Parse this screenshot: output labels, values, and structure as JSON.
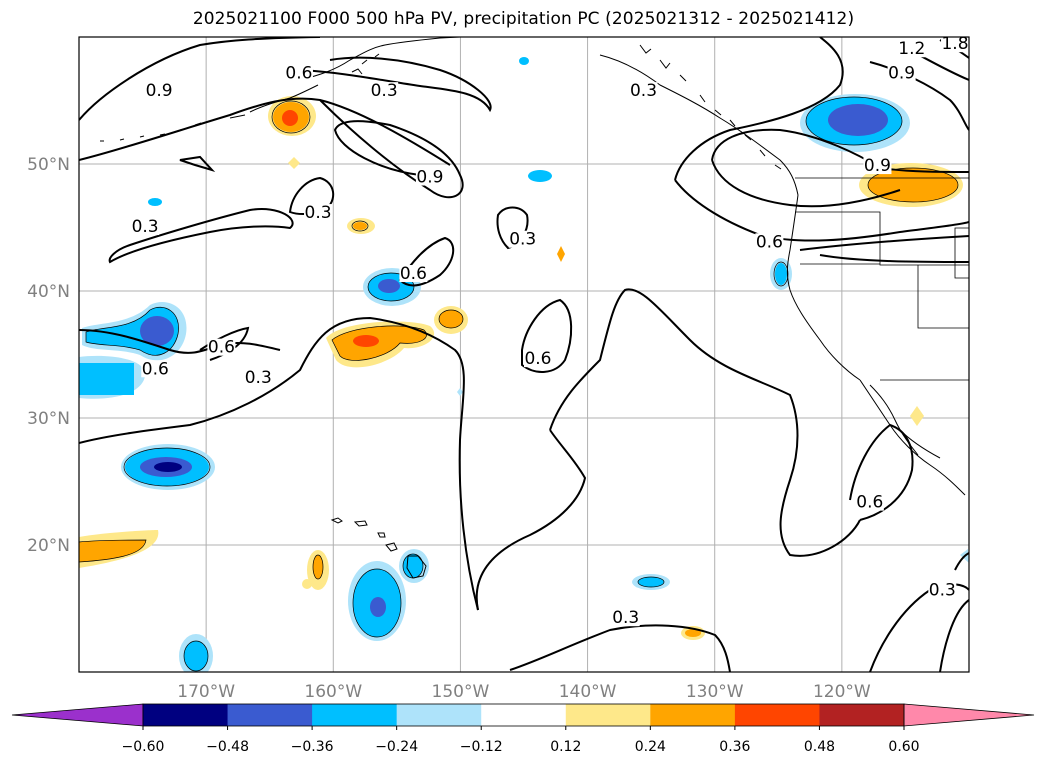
{
  "title": "2025021100 F000 500 hPa PV, precipitation PC (2025021312 - 2025021412)",
  "map": {
    "lon_range": [
      -180,
      -110
    ],
    "lat_range": [
      10,
      60
    ],
    "lon_ticks": [
      {
        "lon": -170,
        "label": "170°W"
      },
      {
        "lon": -160,
        "label": "160°W"
      },
      {
        "lon": -150,
        "label": "150°W"
      },
      {
        "lon": -140,
        "label": "140°W"
      },
      {
        "lon": -130,
        "label": "130°W"
      },
      {
        "lon": -120,
        "label": "120°W"
      }
    ],
    "lat_ticks": [
      {
        "lat": 20,
        "label": "20°N"
      },
      {
        "lat": 30,
        "label": "30°N"
      },
      {
        "lat": 40,
        "label": "40°N"
      },
      {
        "lat": 50,
        "label": "50°N"
      }
    ],
    "gridlines": true,
    "contour_labels": [
      {
        "text": "0.6",
        "lon": -162.7,
        "lat": 56.9
      },
      {
        "text": "0.3",
        "lon": -156.0,
        "lat": 55.5
      },
      {
        "text": "0.9",
        "lon": -173.7,
        "lat": 55.5
      },
      {
        "text": "0.3",
        "lon": -135.6,
        "lat": 55.5
      },
      {
        "text": "1.2",
        "lon": -114.5,
        "lat": 58.8
      },
      {
        "text": "0.9",
        "lon": -115.3,
        "lat": 56.9
      },
      {
        "text": "1.8",
        "lon": -111.1,
        "lat": 59.2
      },
      {
        "text": "0.9",
        "lon": -152.4,
        "lat": 48.7
      },
      {
        "text": "0.3",
        "lon": -161.2,
        "lat": 45.9
      },
      {
        "text": "0.3",
        "lon": -174.8,
        "lat": 44.8
      },
      {
        "text": "0.9",
        "lon": -117.2,
        "lat": 49.6
      },
      {
        "text": "0.3",
        "lon": -145.1,
        "lat": 43.8
      },
      {
        "text": "0.6",
        "lon": -125.7,
        "lat": 43.6
      },
      {
        "text": "0.6",
        "lon": -153.7,
        "lat": 41.1
      },
      {
        "text": "0.6",
        "lon": -168.8,
        "lat": 35.3
      },
      {
        "text": "0.6",
        "lon": -174.0,
        "lat": 33.6
      },
      {
        "text": "0.3",
        "lon": -165.9,
        "lat": 32.9
      },
      {
        "text": "0.6",
        "lon": -143.9,
        "lat": 34.4
      },
      {
        "text": "0.6",
        "lon": -117.8,
        "lat": 23.1
      },
      {
        "text": "0.3",
        "lon": -137.0,
        "lat": 14.0
      },
      {
        "text": "0.3",
        "lon": -112.1,
        "lat": 16.2
      }
    ]
  },
  "colorbar": {
    "colors": [
      "#9b30cc",
      "#000080",
      "#3a5bd0",
      "#00bfff",
      "#aee3fa",
      "#ffffff",
      "#fee88a",
      "#ffa500",
      "#ff4500",
      "#b22222",
      "#ff88aa"
    ],
    "tick_labels": [
      "−0.60",
      "−0.48",
      "−0.36",
      "−0.24",
      "−0.12",
      "0.12",
      "0.24",
      "0.36",
      "0.48",
      "0.60"
    ],
    "extend": "both"
  }
}
